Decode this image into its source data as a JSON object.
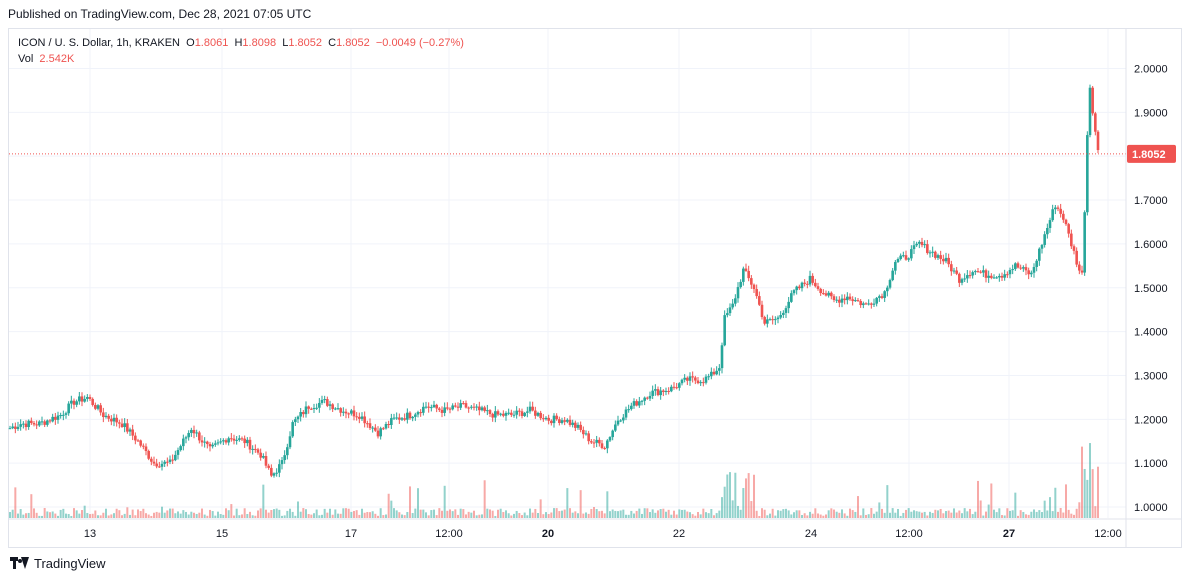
{
  "published": "Published on TradingView.com, Dec 28, 2021 07:05 UTC",
  "legend": {
    "symbol": "ICON / U. S. Dollar, 1h, KRAKEN",
    "o_label": "O",
    "o_value": "1.8061",
    "h_label": "H",
    "h_value": "1.8098",
    "l_label": "L",
    "l_value": "1.8052",
    "c_label": "C",
    "c_value": "1.8052",
    "change": "−0.0049 (−0.27%)",
    "vol_label": "Vol",
    "vol_value": "2.542K"
  },
  "footer": {
    "brand": "TradingView"
  },
  "colors": {
    "up": "#26a69a",
    "down": "#ef5350",
    "grid": "#f0f3fa",
    "price_line": "#ef5350"
  },
  "chart_data": {
    "type": "candlestick",
    "symbol": "ICON / U. S. Dollar",
    "interval": "1h",
    "exchange": "KRAKEN",
    "last_price": 1.8052,
    "last_price_label": "1.8052",
    "y_ticks": [
      "2.0000",
      "1.9000",
      "1.8000",
      "1.7000",
      "1.6000",
      "1.5000",
      "1.4000",
      "1.3000",
      "1.2000",
      "1.1000",
      "1.0000"
    ],
    "y_tick_values": [
      2.0,
      1.9,
      1.8,
      1.7,
      1.6,
      1.5,
      1.4,
      1.3,
      1.2,
      1.1,
      1.0
    ],
    "ylim": [
      0.975,
      2.09
    ],
    "x_ticks": [
      "13",
      "15",
      "17",
      "12:00",
      "20",
      "22",
      "24",
      "12:00",
      "27",
      "12:00"
    ],
    "x_tick_bold": [
      false,
      false,
      false,
      false,
      true,
      false,
      false,
      false,
      true,
      false
    ],
    "grid": true,
    "hour_anchors": [
      [
        0,
        1.18
      ],
      [
        8,
        1.19
      ],
      [
        22,
        1.19
      ],
      [
        38,
        1.21
      ],
      [
        48,
        1.24
      ],
      [
        58,
        1.25
      ],
      [
        70,
        1.21
      ],
      [
        84,
        1.19
      ],
      [
        96,
        1.15
      ],
      [
        108,
        1.1
      ],
      [
        120,
        1.1
      ],
      [
        136,
        1.18
      ],
      [
        150,
        1.13
      ],
      [
        164,
        1.16
      ],
      [
        176,
        1.15
      ],
      [
        188,
        1.12
      ],
      [
        196,
        1.07
      ],
      [
        204,
        1.1
      ],
      [
        212,
        1.19
      ],
      [
        224,
        1.23
      ],
      [
        236,
        1.24
      ],
      [
        250,
        1.22
      ],
      [
        262,
        1.21
      ],
      [
        276,
        1.17
      ],
      [
        288,
        1.2
      ],
      [
        300,
        1.21
      ],
      [
        312,
        1.23
      ],
      [
        326,
        1.22
      ],
      [
        340,
        1.23
      ],
      [
        352,
        1.22
      ],
      [
        364,
        1.21
      ],
      [
        376,
        1.21
      ],
      [
        390,
        1.22
      ],
      [
        404,
        1.2
      ],
      [
        416,
        1.2
      ],
      [
        426,
        1.18
      ],
      [
        436,
        1.15
      ],
      [
        446,
        1.14
      ],
      [
        456,
        1.2
      ],
      [
        466,
        1.23
      ],
      [
        480,
        1.26
      ],
      [
        496,
        1.27
      ],
      [
        508,
        1.29
      ],
      [
        520,
        1.29
      ],
      [
        526,
        1.3
      ],
      [
        532,
        1.32
      ],
      [
        536,
        1.43
      ],
      [
        542,
        1.46
      ],
      [
        550,
        1.54
      ],
      [
        558,
        1.5
      ],
      [
        566,
        1.42
      ],
      [
        576,
        1.43
      ],
      [
        588,
        1.49
      ],
      [
        600,
        1.52
      ],
      [
        610,
        1.49
      ],
      [
        618,
        1.47
      ],
      [
        628,
        1.48
      ],
      [
        642,
        1.46
      ],
      [
        656,
        1.49
      ],
      [
        664,
        1.56
      ],
      [
        672,
        1.57
      ],
      [
        682,
        1.6
      ],
      [
        692,
        1.58
      ],
      [
        702,
        1.56
      ],
      [
        712,
        1.52
      ],
      [
        722,
        1.54
      ],
      [
        732,
        1.53
      ],
      [
        744,
        1.53
      ],
      [
        754,
        1.55
      ],
      [
        766,
        1.53
      ],
      [
        776,
        1.62
      ],
      [
        784,
        1.69
      ],
      [
        790,
        1.66
      ],
      [
        796,
        1.6
      ],
      [
        802,
        1.54
      ],
      [
        804,
        1.53
      ],
      [
        806,
        1.68
      ],
      [
        808,
        1.85
      ],
      [
        810,
        1.96
      ],
      [
        813,
        1.88
      ],
      [
        816,
        1.81
      ]
    ],
    "total_hours": 816,
    "volume_note": "volume bars scaled visually; peak ~ 2.5x average"
  }
}
